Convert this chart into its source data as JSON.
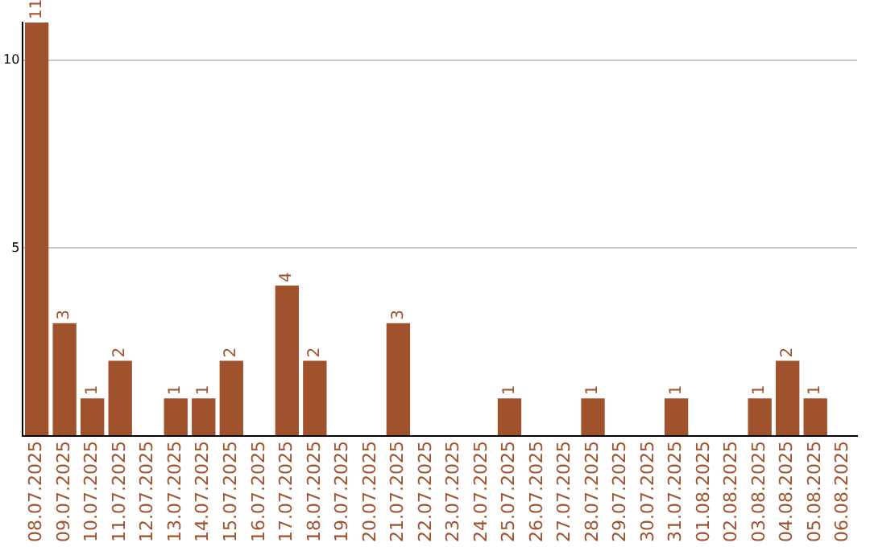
{
  "chart_data": {
    "type": "bar",
    "categories": [
      "08.07.2025",
      "09.07.2025",
      "10.07.2025",
      "11.07.2025",
      "12.07.2025",
      "13.07.2025",
      "14.07.2025",
      "15.07.2025",
      "16.07.2025",
      "17.07.2025",
      "18.07.2025",
      "19.07.2025",
      "20.07.2025",
      "21.07.2025",
      "22.07.2025",
      "23.07.2025",
      "24.07.2025",
      "25.07.2025",
      "26.07.2025",
      "27.07.2025",
      "28.07.2025",
      "29.07.2025",
      "30.07.2025",
      "31.07.2025",
      "01.08.2025",
      "02.08.2025",
      "03.08.2025",
      "04.08.2025",
      "05.08.2025",
      "06.08.2025"
    ],
    "values": [
      11,
      3,
      1,
      2,
      0,
      1,
      1,
      2,
      0,
      4,
      2,
      0,
      0,
      3,
      0,
      0,
      0,
      1,
      0,
      0,
      1,
      0,
      0,
      1,
      0,
      0,
      1,
      2,
      1,
      0
    ],
    "value_labels": [
      "11",
      "3",
      "1",
      "2",
      null,
      "1",
      "1",
      "2",
      null,
      "4",
      "2",
      null,
      null,
      "3",
      null,
      null,
      null,
      "1",
      null,
      null,
      "1",
      null,
      null,
      "1",
      null,
      null,
      "1",
      "2",
      "1",
      null
    ],
    "color": "#a0522d",
    "ylim": [
      0,
      11
    ],
    "yticks": [
      {
        "value": 0,
        "label": null
      },
      5,
      10
    ],
    "grid": "y"
  }
}
